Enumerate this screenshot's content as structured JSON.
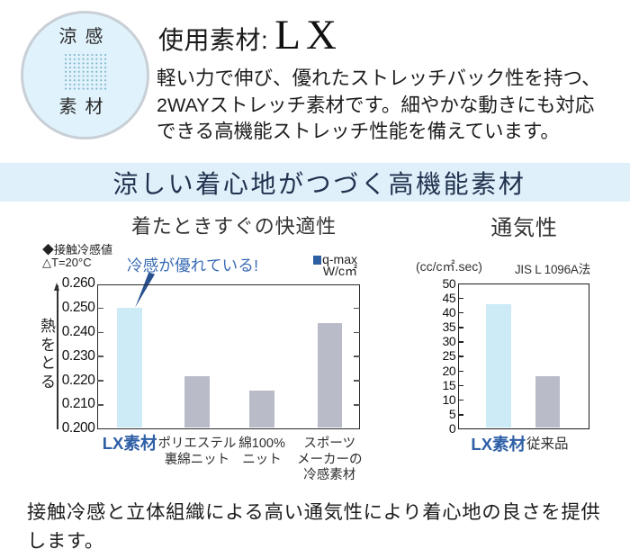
{
  "badge": {
    "top_label": "涼感",
    "bottom_label": "素材",
    "dot_color": "#7cb4ca",
    "background": "#e0f2fb"
  },
  "intro": {
    "heading_prefix": "使用素材:",
    "heading_material": "LX",
    "body_lines": "軽い力で伸び、優れたストレッチバック性を持つ、\n2WAYストレッチ素材です。細やかな動きにも対応\nできる高機能ストレッチ性能を備えています。"
  },
  "banner": {
    "title": "涼しい着心地がつづく高機能素材",
    "background": "#e0f0fb"
  },
  "bottom_note": "接触冷感と立体組織による高い通気性により着心地の良さを提供\nします。",
  "chart_data": [
    {
      "type": "bar",
      "title": "着たときすぐの快適性",
      "legend_left": "◆接触冷感値\n△T=20°C",
      "annotation": "冷感が優れている!",
      "annotation_color": "#3a6cb4",
      "legend_marker_color": "#2e5fa3",
      "legend_right_line1": "q-max",
      "legend_right_line2": "W/c㎡",
      "ylabel": "熱をとる",
      "categories": [
        "LX素材",
        "ポリエステル\n裏綿ニット",
        "綿100%\nニット",
        "スポーツ\nメーカーの\n冷感素材"
      ],
      "values": [
        0.25,
        0.222,
        0.216,
        0.244
      ],
      "bar_colors": [
        "#cdeaf7",
        "#b9bcc8",
        "#b9bcc8",
        "#b9bcc8"
      ],
      "category_colors": [
        "#2e5fa6",
        "#2f2f2f",
        "#2f2f2f",
        "#2f2f2f"
      ],
      "ylim": [
        0.2,
        0.26
      ],
      "ytick_labels": [
        "0.200",
        "0.210",
        "0.220",
        "0.230",
        "0.240",
        "0.250",
        "0.260"
      ],
      "grid": false,
      "legend_position": "top"
    },
    {
      "type": "bar",
      "title": "通気性",
      "unit_label": "(cc/c㎡.sec)",
      "method_label": "JIS L 1096A法",
      "categories": [
        "LX素材",
        "従来品"
      ],
      "values": [
        43,
        18.3
      ],
      "bar_colors": [
        "#cdeaf7",
        "#b9bcc8"
      ],
      "category_colors": [
        "#2e5fa6",
        "#2f2f2f"
      ],
      "ylim": [
        0,
        50
      ],
      "ytick_labels": [
        "0",
        "5",
        "10",
        "15",
        "20",
        "25",
        "30",
        "35",
        "40",
        "45",
        "50"
      ],
      "grid": false
    }
  ]
}
